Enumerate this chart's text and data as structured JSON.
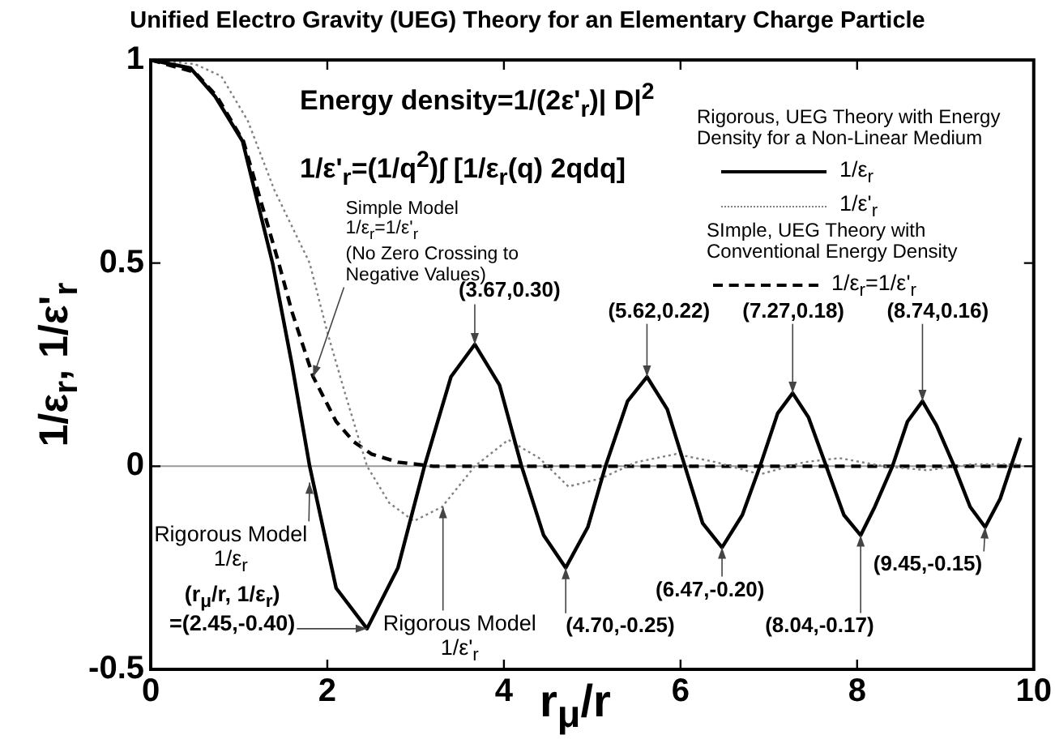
{
  "chart_data": {
    "type": "line",
    "title": "Unified Electro Gravity (UEG) Theory for an Elementary Charge Particle",
    "xlabel": "r$_{μ}$/r",
    "ylabel": "1/ε$_{r}$,  1/ε'$_{r}$",
    "xlim": [
      0,
      10
    ],
    "xticks": [
      0,
      2,
      4,
      6,
      8,
      10
    ],
    "ylim": [
      -0.5,
      1
    ],
    "yticks": [
      -0.5,
      0,
      0.5,
      1
    ],
    "grid": false,
    "legend": "top right",
    "marker": "none",
    "series": [
      {
        "name": "1/ε$_{r}$",
        "color": "#000000",
        "line_style": "solid",
        "x": [
          0,
          0.45,
          0.73,
          1.04,
          1.38,
          1.6,
          1.8,
          2.1,
          2.45,
          2.8,
          3.1,
          3.4,
          3.67,
          3.95,
          4.2,
          4.45,
          4.7,
          4.95,
          5.15,
          5.4,
          5.62,
          5.85,
          6.05,
          6.25,
          6.47,
          6.7,
          6.9,
          7.1,
          7.27,
          7.45,
          7.65,
          7.85,
          8.04,
          8.2,
          8.4,
          8.57,
          8.74,
          8.9,
          9.1,
          9.28,
          9.45,
          9.62,
          9.85
        ],
        "values": [
          1,
          0.98,
          0.91,
          0.8,
          0.5,
          0.25,
          0,
          -0.3,
          -0.4,
          -0.25,
          0,
          0.22,
          0.3,
          0.2,
          0,
          -0.17,
          -0.25,
          -0.15,
          0,
          0.16,
          0.22,
          0.14,
          0,
          -0.14,
          -0.2,
          -0.12,
          0,
          0.13,
          0.18,
          0.12,
          0,
          -0.12,
          -0.17,
          -0.1,
          0,
          0.11,
          0.16,
          0.1,
          0,
          -0.1,
          -0.15,
          -0.08,
          0.07
        ]
      },
      {
        "name": "1/ε'$_{r}$",
        "color": "#808080",
        "line_style": "dotted",
        "x": [
          0,
          0.5,
          0.8,
          1.1,
          1.4,
          1.8,
          2.0,
          2.2,
          2.45,
          2.7,
          2.98,
          3.3,
          3.67,
          4.05,
          4.4,
          4.73,
          5.1,
          5.5,
          5.95,
          6.4,
          6.9,
          7.4,
          7.8,
          8.3,
          8.8,
          9.3,
          9.85
        ],
        "values": [
          1,
          0.99,
          0.96,
          0.85,
          0.68,
          0.5,
          0.33,
          0.18,
          0,
          -0.09,
          -0.135,
          -0.1,
          0,
          0.065,
          0.02,
          -0.05,
          -0.03,
          0.01,
          0.03,
          0.01,
          -0.02,
          0.01,
          0.02,
          0,
          -0.01,
          0.005,
          0.005
        ]
      },
      {
        "name": "1/ε$_{r}$=1/ε'$_{r}$",
        "color": "#000000",
        "line_style": "dashed",
        "x": [
          0,
          0.5,
          0.75,
          1.05,
          1.45,
          1.6,
          1.84,
          2.1,
          2.3,
          2.5,
          2.8,
          3.2,
          9.85
        ],
        "values": [
          1,
          0.97,
          0.91,
          0.8,
          0.5,
          0.38,
          0.22,
          0.11,
          0.06,
          0.03,
          0.01,
          0,
          0
        ]
      }
    ],
    "ref_lines": [
      {
        "axis": "y",
        "value": 0,
        "color": "#999999"
      }
    ],
    "annotations": [
      "Energy density=1/(2ε'$_{r}$)| D|$^{2}$",
      "1/ε'$_{r}$=(1/q$^{2}$)∫ [1/ε$_{r}$(q) 2qdq]",
      "Rigorous, UEG Theory with Energy Density for a Non-Linear Medium",
      "SImple, UEG Theory with Conventional Energy Density",
      {
        "text": "Simple Model\n1/ε$_{r}$=1/ε'$_{r}$\n(No Zero Crossing to Negative Values)",
        "x": 1.84,
        "y": 0.22
      },
      {
        "text": "Rigorous Model\n1/ε$_{r}$",
        "x": 1.8,
        "y": -0.04
      },
      {
        "text": "Rigorous Model\n1/ε'$_{r}$",
        "x": 3.31,
        "y": -0.1
      },
      {
        "text": "(r$_{μ}$/r, 1/ε$_{r}$)\n=(2.45,-0.40)",
        "x": 2.45,
        "y": -0.4
      },
      {
        "text": "(3.67,0.30)",
        "x": 3.67,
        "y": 0.3
      },
      {
        "text": "(4.70,-0.25)",
        "x": 4.7,
        "y": -0.25
      },
      {
        "text": "(5.62,0.22)",
        "x": 5.62,
        "y": 0.22
      },
      {
        "text": "(6.47,-0.20)",
        "x": 6.47,
        "y": -0.2
      },
      {
        "text": "(7.27,0.18)",
        "x": 7.27,
        "y": 0.18
      },
      {
        "text": "(8.04,-0.17)",
        "x": 8.04,
        "y": -0.17
      },
      {
        "text": "(8.74,0.16)",
        "x": 8.74,
        "y": 0.16
      },
      {
        "text": "(9.45,-0.15)",
        "x": 9.45,
        "y": -0.15
      }
    ]
  }
}
